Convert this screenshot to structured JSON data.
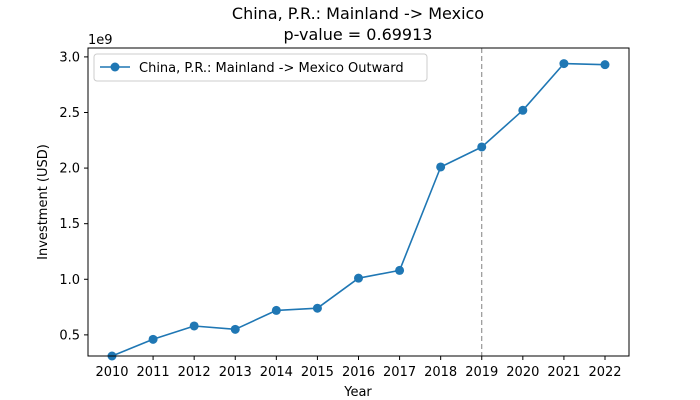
{
  "chart_data": {
    "type": "line",
    "title": "China, P.R.: Mainland -> Mexico",
    "subtitle": "p-value = 0.69913",
    "xlabel": "Year",
    "ylabel": "Investment (USD)",
    "y_offset_label": "1e9",
    "x": [
      "2010",
      "2011",
      "2012",
      "2013",
      "2014",
      "2015",
      "2016",
      "2017",
      "2018",
      "2019",
      "2020",
      "2021",
      "2022"
    ],
    "yticks": [
      0.5,
      1.0,
      1.5,
      2.0,
      2.5,
      3.0
    ],
    "ytick_labels": [
      "0.5",
      "1.0",
      "1.5",
      "2.0",
      "2.5",
      "3.0"
    ],
    "ylim": [
      0.31,
      3.08
    ],
    "series": [
      {
        "name": "China, P.R.: Mainland -> Mexico Outward",
        "color": "#1f77b4",
        "values": [
          0.31,
          0.46,
          0.58,
          0.55,
          0.72,
          0.74,
          1.01,
          1.08,
          2.01,
          2.19,
          2.52,
          2.94,
          2.93
        ]
      }
    ],
    "vline": {
      "x": "2019",
      "style": "dashed",
      "color": "#808080"
    },
    "legend_position": "top-left",
    "grid": false
  }
}
